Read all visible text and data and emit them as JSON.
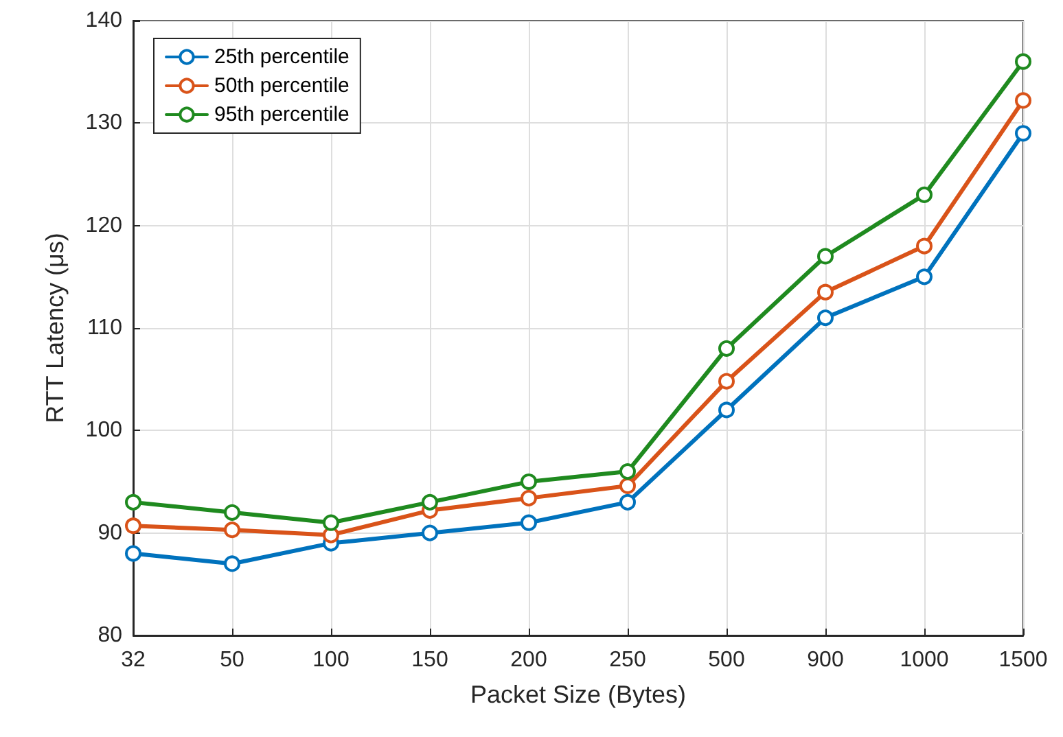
{
  "chart_data": {
    "type": "line",
    "xlabel": "Packet Size (Bytes)",
    "ylabel": "RTT Latency (μs)",
    "categories": [
      "32",
      "50",
      "100",
      "150",
      "200",
      "250",
      "500",
      "900",
      "1000",
      "1500"
    ],
    "series": [
      {
        "name": "25th percentile",
        "color": "#0072bd",
        "values": [
          88,
          87,
          89,
          90,
          91,
          93,
          102,
          111,
          115,
          129
        ]
      },
      {
        "name": "50th percentile",
        "color": "#d95319",
        "values": [
          90.7,
          90.3,
          89.8,
          92.2,
          93.4,
          94.6,
          104.8,
          113.5,
          118,
          132.2
        ]
      },
      {
        "name": "95th percentile",
        "color": "#1f8a1f",
        "values": [
          93,
          92,
          91,
          93,
          95,
          96,
          108,
          117,
          123,
          136
        ]
      }
    ],
    "ylim": [
      80,
      140
    ],
    "yticks": [
      80,
      90,
      100,
      110,
      120,
      130,
      140
    ],
    "grid": true,
    "legend": "top left",
    "marker": "circle",
    "line_style": "solid"
  }
}
